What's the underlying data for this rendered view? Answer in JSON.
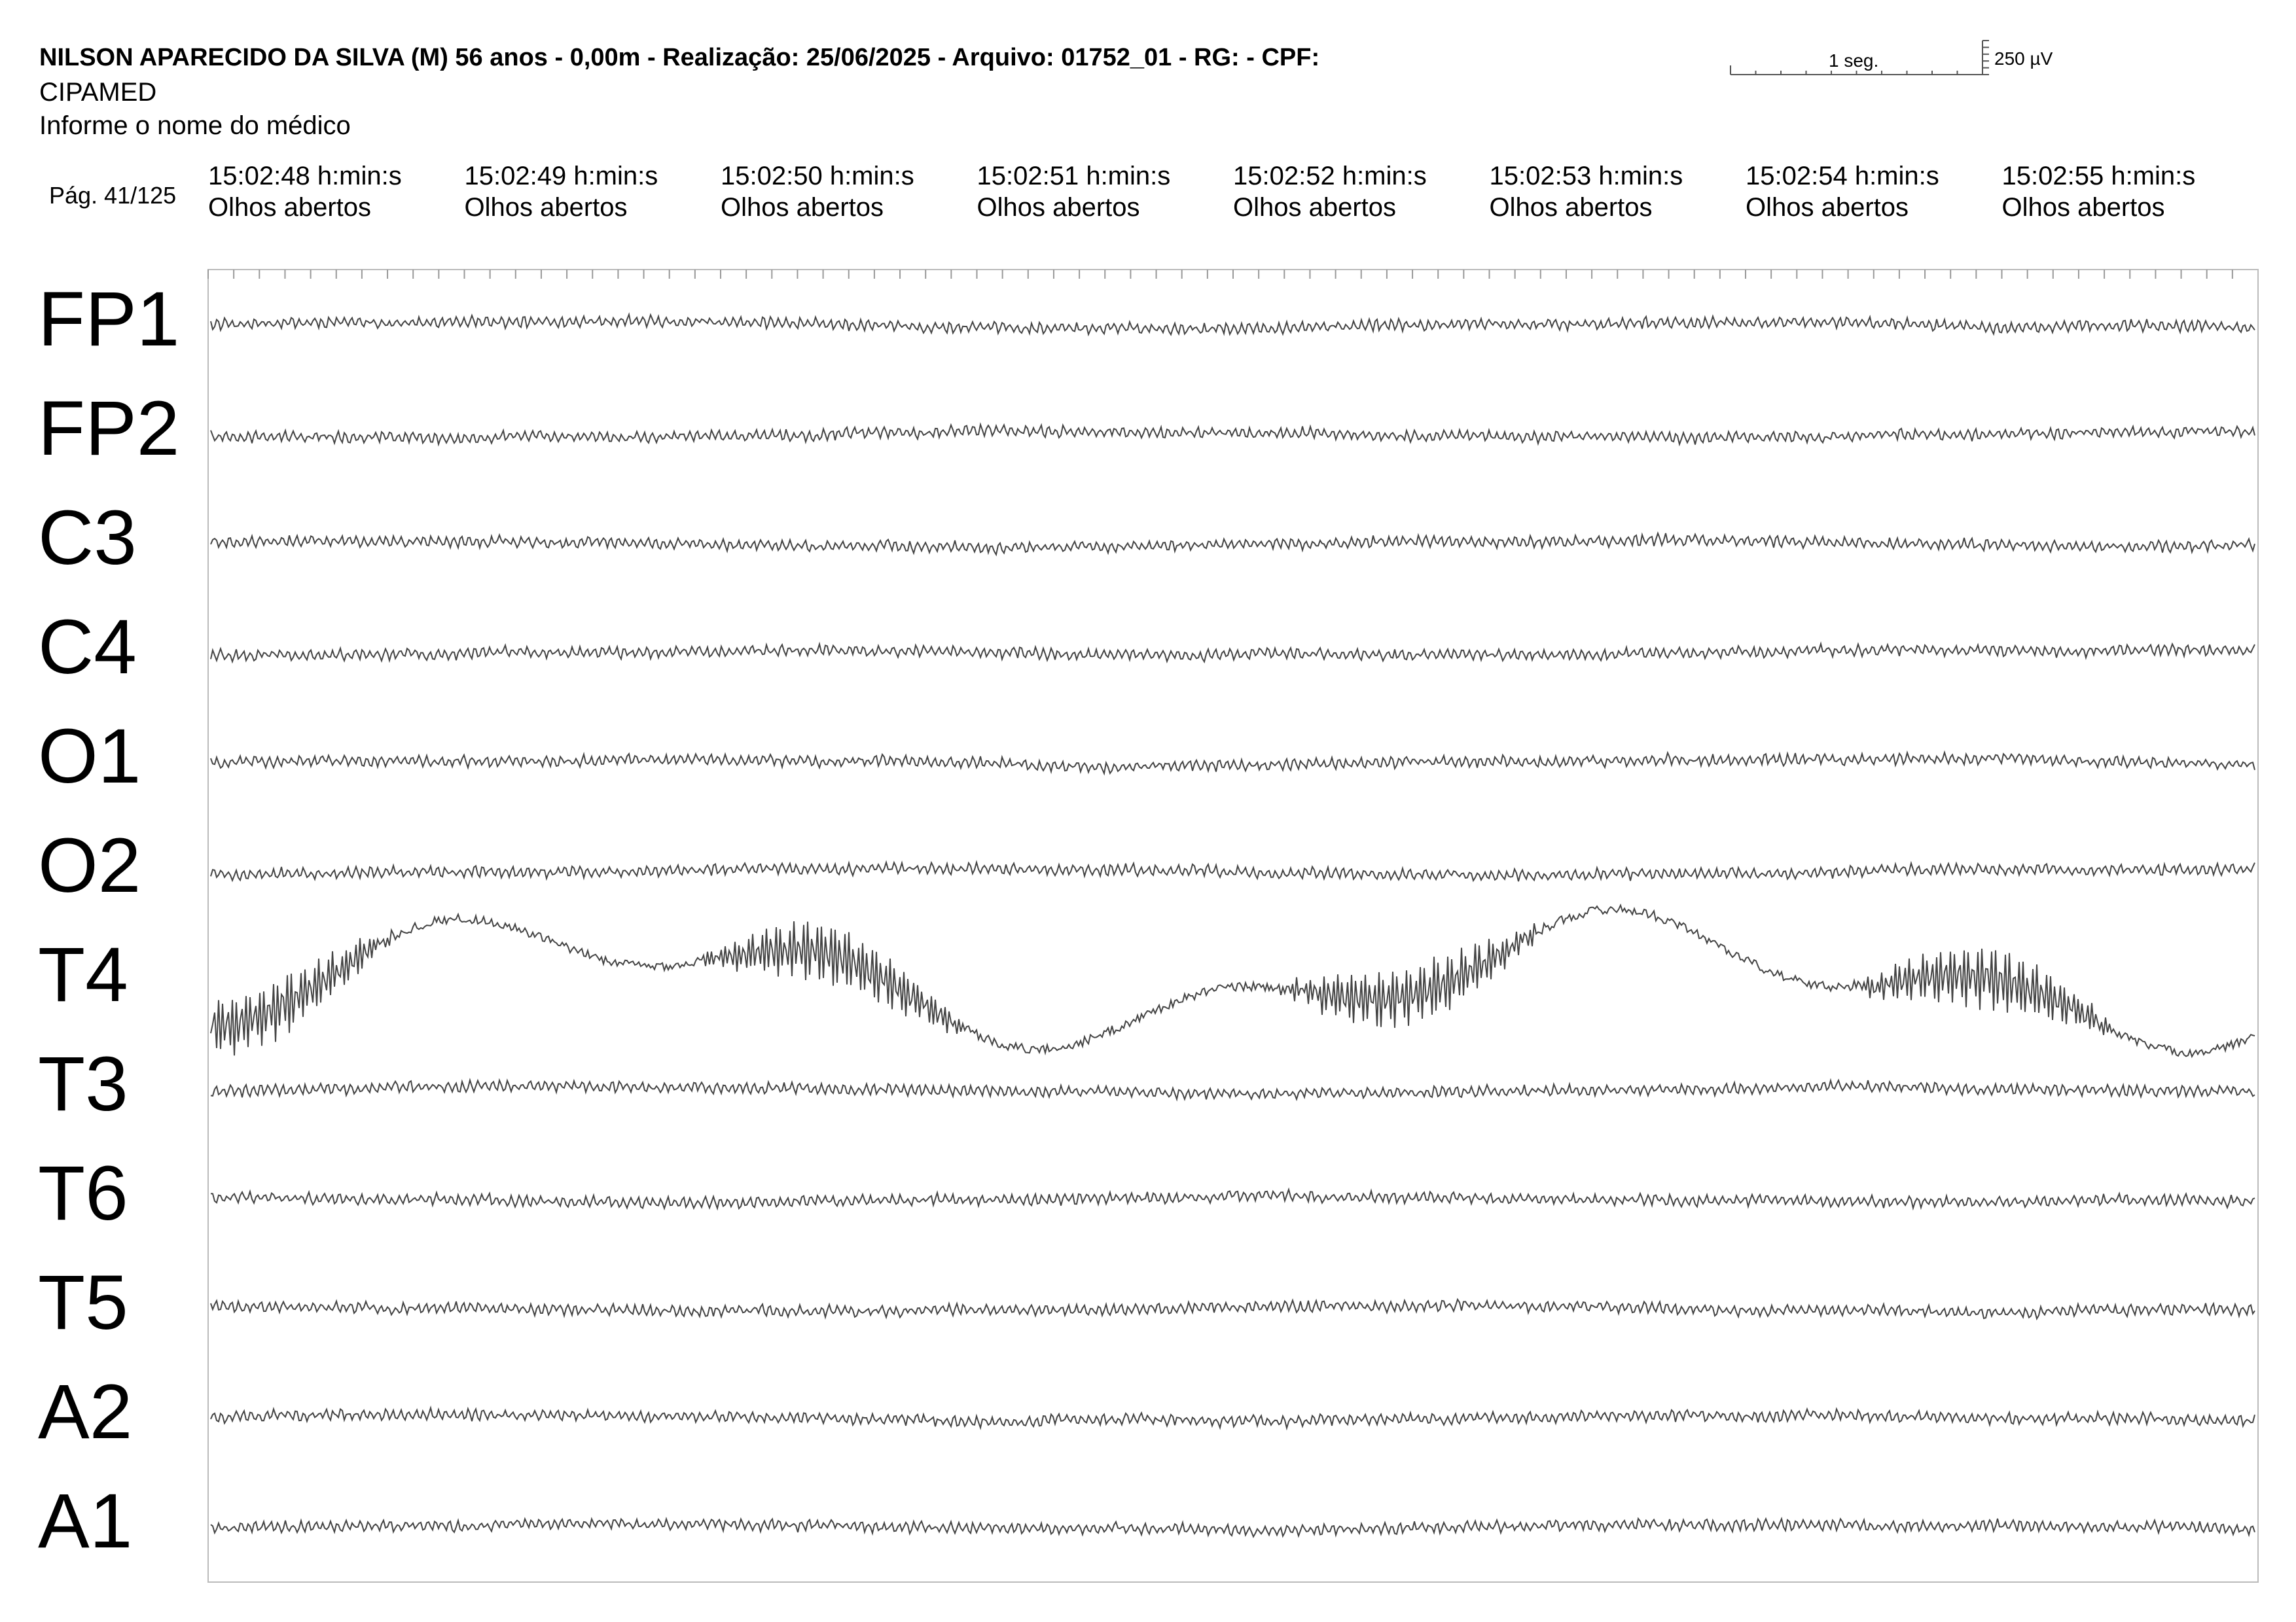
{
  "header": {
    "title": "NILSON APARECIDO DA SILVA (M) 56 anos - 0,00m - Realização: 25/06/2025 - Arquivo: 01752_01 - RG:  - CPF:",
    "clinic": "CIPAMED",
    "doctor": "Informe o nome do médico"
  },
  "scale": {
    "time": "1 seg.",
    "amplitude": "250 µV"
  },
  "page": "Pág. 41/125",
  "epochs": [
    {
      "time": "15:02:48 h:min:s",
      "state": "Olhos abertos"
    },
    {
      "time": "15:02:49 h:min:s",
      "state": "Olhos abertos"
    },
    {
      "time": "15:02:50 h:min:s",
      "state": "Olhos abertos"
    },
    {
      "time": "15:02:51 h:min:s",
      "state": "Olhos abertos"
    },
    {
      "time": "15:02:52 h:min:s",
      "state": "Olhos abertos"
    },
    {
      "time": "15:02:53 h:min:s",
      "state": "Olhos abertos"
    },
    {
      "time": "15:02:54 h:min:s",
      "state": "Olhos abertos"
    },
    {
      "time": "15:02:55 h:min:s",
      "state": "Olhos abertos"
    }
  ],
  "channels": [
    "FP1",
    "FP2",
    "C3",
    "C4",
    "O1",
    "O2",
    "T4",
    "T3",
    "T6",
    "T5",
    "A2",
    "A1"
  ]
}
